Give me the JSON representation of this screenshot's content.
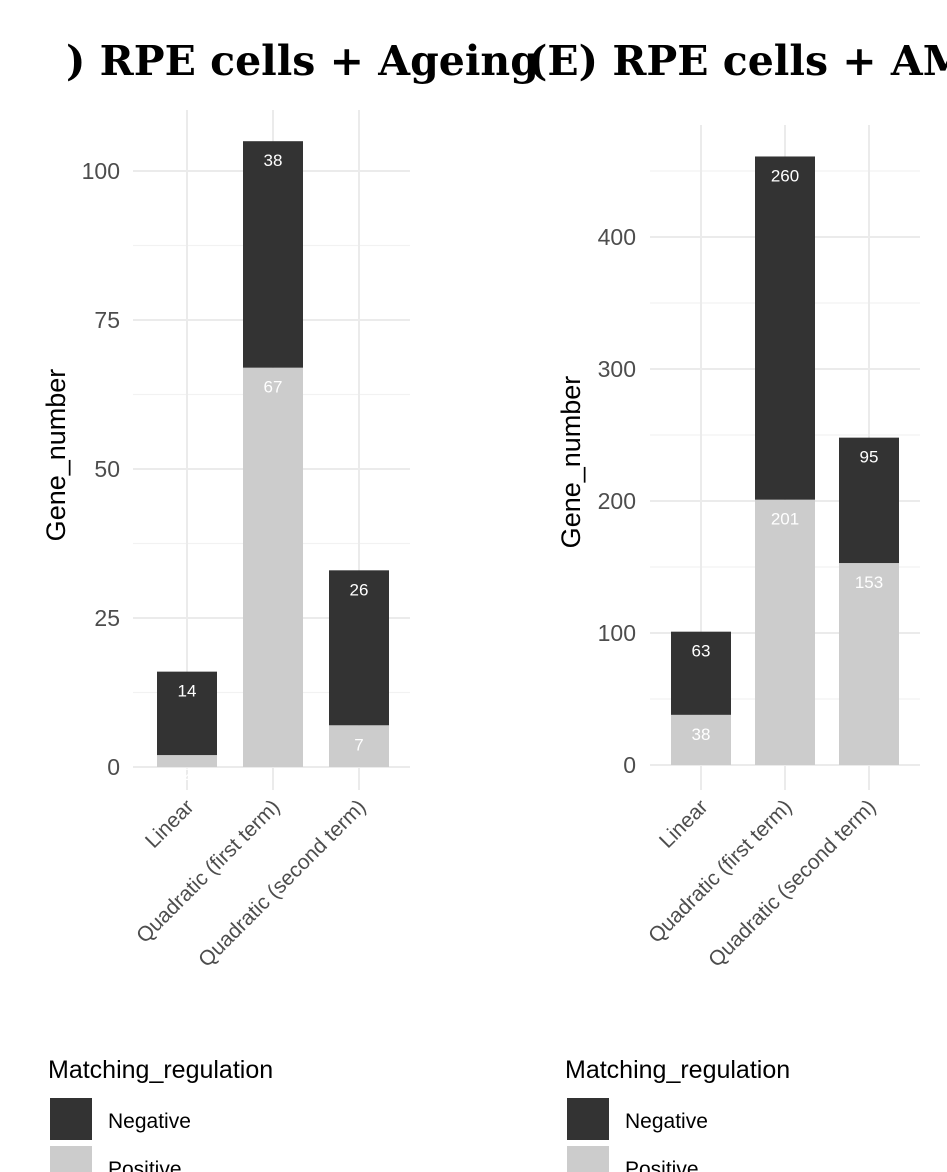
{
  "chart_data": [
    {
      "type": "bar",
      "stacked": true,
      "title": ") RPE cells + Ageing",
      "xlabel": "",
      "ylabel": "Gene_number",
      "categories": [
        "Linear",
        "Quadratic (first term)",
        "Quadratic (second term)"
      ],
      "series": [
        {
          "name": "Positive",
          "values": [
            2,
            67,
            7
          ],
          "color": "#cccccc"
        },
        {
          "name": "Negative",
          "values": [
            14,
            38,
            26
          ],
          "color": "#333333"
        }
      ],
      "yticks": [
        0,
        25,
        50,
        75,
        100
      ],
      "ylim": [
        0,
        105
      ],
      "grid": true,
      "legend": {
        "title": "Matching_regulation",
        "placement": "bottom",
        "entries": [
          "Negative",
          "Positive"
        ]
      }
    },
    {
      "type": "bar",
      "stacked": true,
      "title": "(E) RPE cells + AMD",
      "xlabel": "",
      "ylabel": "Gene_number",
      "categories": [
        "Linear",
        "Quadratic (first term)",
        "Quadratic (second term)"
      ],
      "series": [
        {
          "name": "Positive",
          "values": [
            38,
            201,
            153
          ],
          "color": "#cccccc"
        },
        {
          "name": "Negative",
          "values": [
            63,
            260,
            95
          ],
          "color": "#333333"
        }
      ],
      "yticks": [
        0,
        100,
        200,
        300,
        400
      ],
      "ylim": [
        0,
        461
      ],
      "grid": true,
      "legend": {
        "title": "Matching_regulation",
        "placement": "bottom",
        "entries": [
          "Negative",
          "Positive"
        ]
      }
    }
  ]
}
